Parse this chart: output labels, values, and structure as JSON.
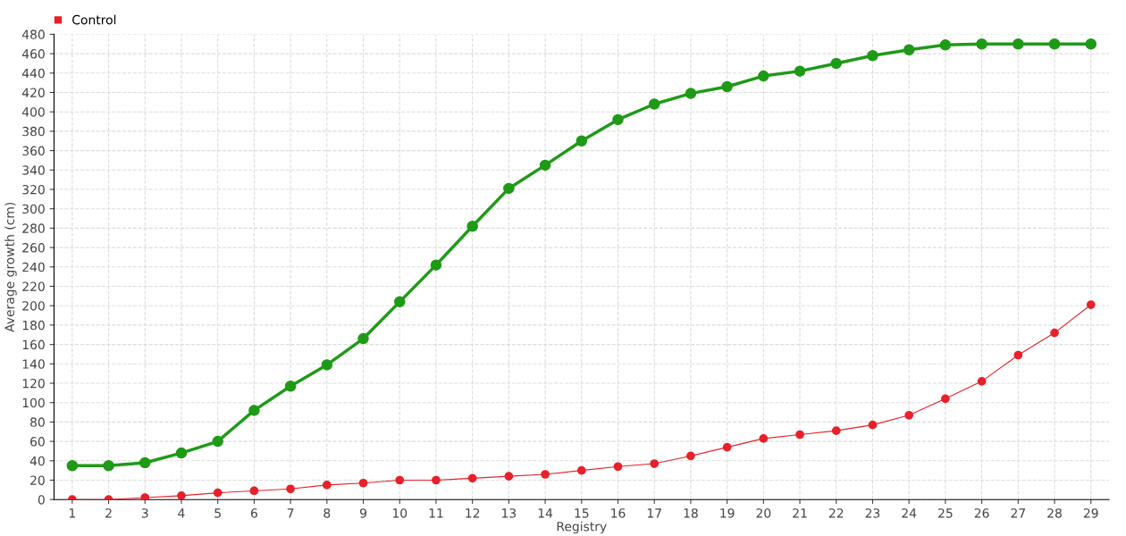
{
  "chart_data": {
    "type": "line",
    "xlabel": "Registry",
    "ylabel": "Average growth (cm)",
    "categories": [
      "1",
      "2",
      "3",
      "4",
      "5",
      "6",
      "7",
      "8",
      "9",
      "10",
      "11",
      "12",
      "13",
      "14",
      "15",
      "16",
      "17",
      "18",
      "19",
      "20",
      "21",
      "22",
      "23",
      "24",
      "25",
      "26",
      "27",
      "28",
      "29"
    ],
    "series": [
      {
        "name": "Control",
        "color": "#e8202a",
        "values": [
          0,
          0,
          2,
          4,
          7,
          9,
          11,
          15,
          17,
          20,
          20,
          22,
          24,
          26,
          30,
          34,
          37,
          45,
          54,
          63,
          67,
          71,
          77,
          87,
          104,
          122,
          149,
          172,
          201
        ]
      },
      {
        "color": "#1f9a17",
        "values": [
          35,
          35,
          38,
          48,
          60,
          92,
          117,
          139,
          166,
          204,
          242,
          282,
          321,
          345,
          370,
          392,
          408,
          419,
          426,
          437,
          442,
          450,
          458,
          464,
          469,
          470,
          470,
          470,
          470
        ]
      }
    ],
    "ylim": [
      0,
      480
    ],
    "yticks": [
      0,
      20,
      40,
      60,
      80,
      100,
      120,
      140,
      160,
      180,
      200,
      220,
      240,
      260,
      280,
      300,
      320,
      340,
      360,
      380,
      400,
      420,
      440,
      460,
      480
    ],
    "grid": true,
    "legend": "top left",
    "marker": "circle",
    "line_style": "solid"
  }
}
